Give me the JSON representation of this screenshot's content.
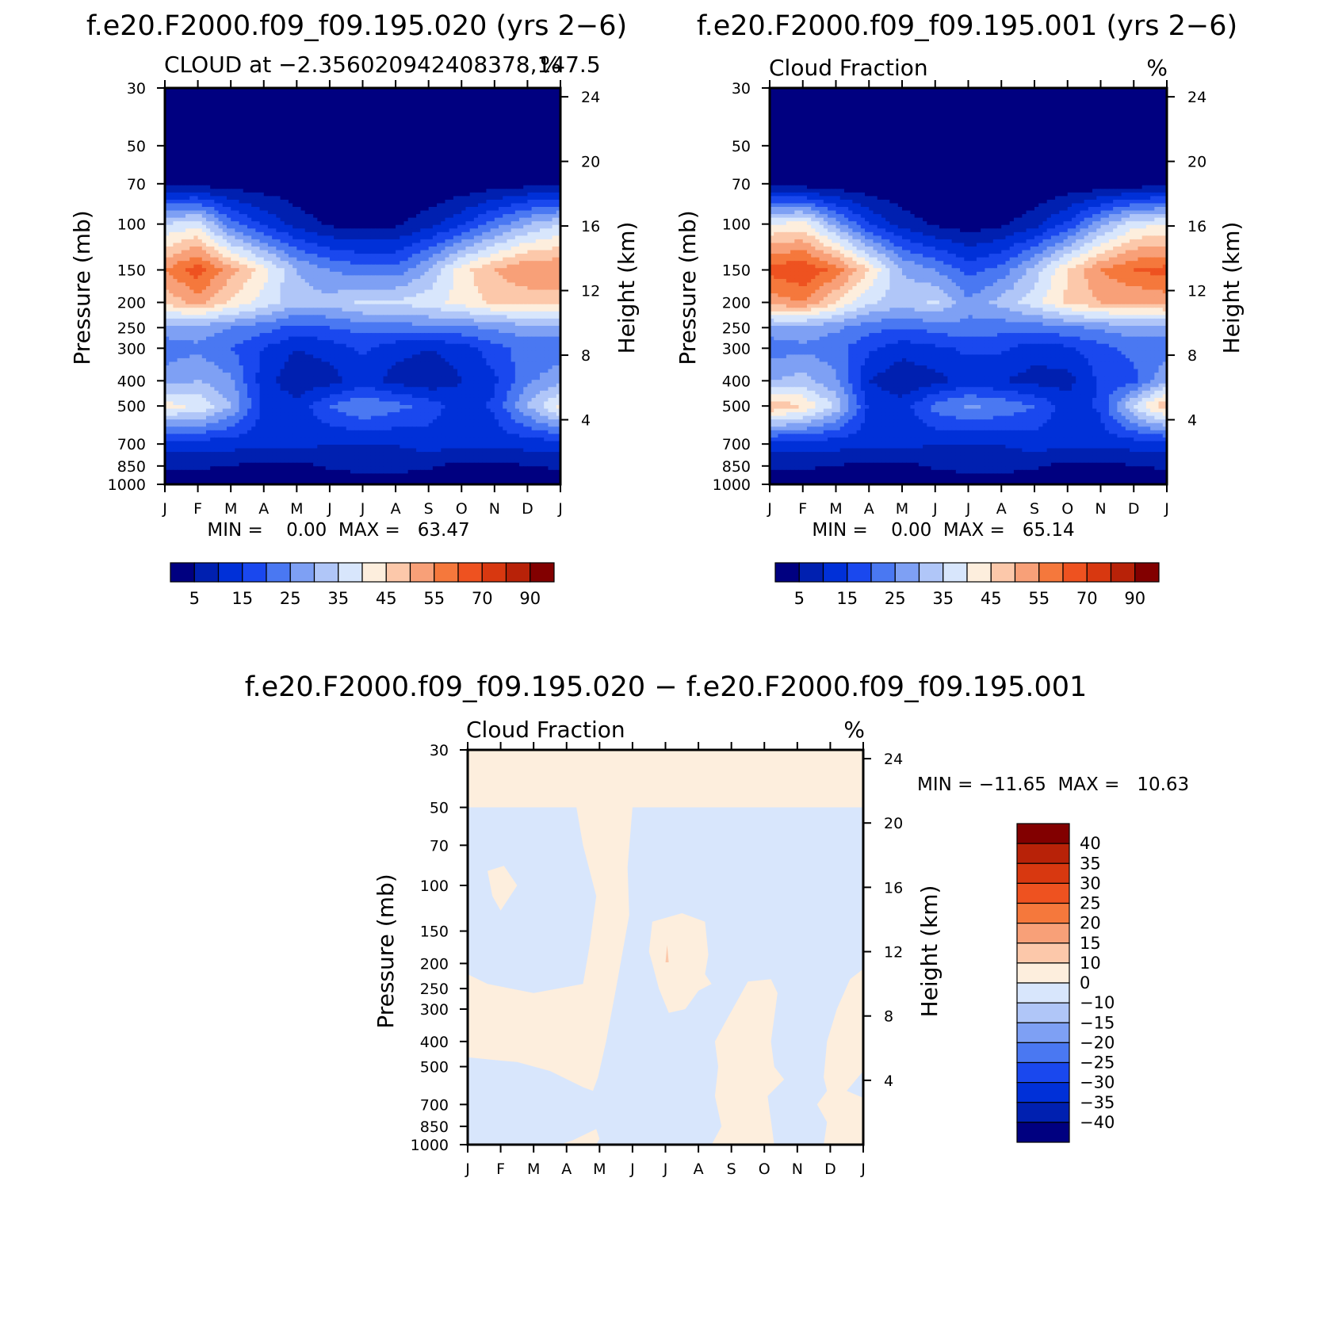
{
  "colors": {
    "palette": [
      "#000080",
      "#0020b0",
      "#0030d8",
      "#1a48ee",
      "#4a78f2",
      "#7ea0f4",
      "#b0c6f8",
      "#d8e6fc",
      "#fdeedd",
      "#fcc8aa",
      "#f8a078",
      "#f5783c",
      "#ee5220",
      "#d83810",
      "#b82208",
      "#820000"
    ],
    "diff_palette": [
      "#000080",
      "#0020b0",
      "#0030d8",
      "#1a48ee",
      "#4a78f2",
      "#7ea0f4",
      "#b0c6f8",
      "#d8e6fc",
      "#fdeedd",
      "#fcc8aa",
      "#f8a078",
      "#f5783c",
      "#ee5220",
      "#d83810",
      "#b82208",
      "#820000"
    ]
  },
  "chart_data": [
    {
      "type": "heatmap",
      "title": "f.e20.F2000.f09_f09.195.020 (yrs 2−6)",
      "subtitle_left": "CLOUD at −2.356020942408378,147.5",
      "subtitle_right": "%",
      "xlabel": "",
      "ylabel": "Pressure (mb)",
      "ylabel_right": "Height (km)",
      "x_ticks": [
        "J",
        "F",
        "M",
        "A",
        "M",
        "J",
        "J",
        "A",
        "S",
        "O",
        "N",
        "D",
        "J"
      ],
      "y_ticks": [
        "30",
        "50",
        "70",
        "100",
        "150",
        "200",
        "250",
        "300",
        "400",
        "500",
        "700",
        "850",
        "1000"
      ],
      "y_ticks_right": [
        "24",
        "20",
        "16",
        "12",
        "8",
        "4"
      ],
      "minmax": "MIN =    0.00  MAX =   63.47",
      "min": 0.0,
      "max": 63.47,
      "colorbar_labels": [
        "5",
        "15",
        "25",
        "35",
        "45",
        "55",
        "70",
        "90"
      ],
      "levels": [
        {
          "p": 30,
          "v": [
            0,
            0,
            0,
            0,
            0,
            0,
            0,
            0,
            0,
            0,
            0,
            0,
            0
          ]
        },
        {
          "p": 50,
          "v": [
            0,
            0,
            0,
            0,
            0,
            0,
            0,
            0,
            0,
            0,
            0,
            0,
            0
          ]
        },
        {
          "p": 70,
          "v": [
            3,
            3,
            2,
            2,
            1,
            0,
            0,
            0,
            0,
            1,
            2,
            3,
            3
          ]
        },
        {
          "p": 100,
          "v": [
            35,
            38,
            22,
            14,
            8,
            4,
            3,
            4,
            8,
            14,
            22,
            30,
            35
          ]
        },
        {
          "p": 150,
          "v": [
            55,
            63,
            52,
            42,
            30,
            25,
            22,
            22,
            30,
            43,
            50,
            55,
            55
          ]
        },
        {
          "p": 200,
          "v": [
            46,
            52,
            44,
            38,
            32,
            32,
            36,
            36,
            38,
            42,
            46,
            46,
            46
          ]
        },
        {
          "p": 250,
          "v": [
            28,
            28,
            25,
            22,
            18,
            20,
            22,
            22,
            24,
            24,
            26,
            28,
            28
          ]
        },
        {
          "p": 300,
          "v": [
            22,
            24,
            20,
            15,
            10,
            12,
            16,
            12,
            10,
            12,
            18,
            22,
            22
          ]
        },
        {
          "p": 400,
          "v": [
            28,
            30,
            26,
            12,
            6,
            8,
            12,
            8,
            6,
            10,
            14,
            24,
            28
          ]
        },
        {
          "p": 500,
          "v": [
            42,
            40,
            30,
            14,
            12,
            20,
            25,
            22,
            18,
            12,
            16,
            30,
            42
          ]
        },
        {
          "p": 700,
          "v": [
            12,
            12,
            12,
            12,
            12,
            10,
            10,
            10,
            12,
            12,
            12,
            12,
            12
          ]
        },
        {
          "p": 850,
          "v": [
            6,
            6,
            5,
            3,
            3,
            6,
            8,
            8,
            6,
            3,
            3,
            5,
            6
          ]
        },
        {
          "p": 1000,
          "v": [
            0,
            0,
            0,
            0,
            0,
            0,
            0,
            0,
            0,
            0,
            0,
            0,
            0
          ]
        }
      ]
    },
    {
      "type": "heatmap",
      "title": "f.e20.F2000.f09_f09.195.001 (yrs 2−6)",
      "subtitle_left": "Cloud Fraction",
      "subtitle_right": "%",
      "xlabel": "",
      "ylabel": "Pressure (mb)",
      "ylabel_right": "Height (km)",
      "x_ticks": [
        "J",
        "F",
        "M",
        "A",
        "M",
        "J",
        "J",
        "A",
        "S",
        "O",
        "N",
        "D",
        "J"
      ],
      "y_ticks": [
        "30",
        "50",
        "70",
        "100",
        "150",
        "200",
        "250",
        "300",
        "400",
        "500",
        "700",
        "850",
        "1000"
      ],
      "y_ticks_right": [
        "24",
        "20",
        "16",
        "12",
        "8",
        "4"
      ],
      "minmax": "MIN =    0.00  MAX =   65.14",
      "min": 0.0,
      "max": 65.14,
      "colorbar_labels": [
        "5",
        "15",
        "25",
        "35",
        "45",
        "55",
        "70",
        "90"
      ],
      "levels": [
        {
          "p": 30,
          "v": [
            0,
            0,
            0,
            0,
            0,
            0,
            0,
            0,
            0,
            0,
            0,
            0,
            0
          ]
        },
        {
          "p": 50,
          "v": [
            0,
            0,
            0,
            0,
            0,
            0,
            0,
            0,
            0,
            0,
            0,
            0,
            0
          ]
        },
        {
          "p": 70,
          "v": [
            2,
            2,
            1,
            1,
            0,
            0,
            0,
            0,
            0,
            1,
            1,
            2,
            2
          ]
        },
        {
          "p": 100,
          "v": [
            40,
            42,
            28,
            15,
            8,
            4,
            2,
            4,
            8,
            16,
            28,
            38,
            40
          ]
        },
        {
          "p": 150,
          "v": [
            62,
            65,
            58,
            45,
            30,
            25,
            18,
            22,
            32,
            45,
            55,
            60,
            62
          ]
        },
        {
          "p": 200,
          "v": [
            52,
            55,
            45,
            36,
            32,
            36,
            26,
            32,
            38,
            46,
            50,
            50,
            52
          ]
        },
        {
          "p": 250,
          "v": [
            28,
            28,
            26,
            22,
            20,
            22,
            24,
            22,
            22,
            24,
            26,
            28,
            28
          ]
        },
        {
          "p": 300,
          "v": [
            22,
            24,
            22,
            16,
            12,
            14,
            16,
            16,
            12,
            14,
            18,
            22,
            22
          ]
        },
        {
          "p": 400,
          "v": [
            30,
            32,
            26,
            10,
            6,
            8,
            12,
            10,
            8,
            8,
            16,
            18,
            30
          ]
        },
        {
          "p": 500,
          "v": [
            50,
            45,
            34,
            14,
            12,
            22,
            26,
            24,
            20,
            12,
            16,
            36,
            50
          ]
        },
        {
          "p": 700,
          "v": [
            12,
            12,
            12,
            12,
            12,
            10,
            10,
            10,
            12,
            12,
            12,
            12,
            12
          ]
        },
        {
          "p": 850,
          "v": [
            6,
            6,
            5,
            3,
            3,
            6,
            8,
            8,
            6,
            3,
            3,
            5,
            6
          ]
        },
        {
          "p": 1000,
          "v": [
            0,
            0,
            0,
            0,
            0,
            0,
            0,
            0,
            0,
            0,
            0,
            0,
            0
          ]
        }
      ]
    },
    {
      "type": "heatmap",
      "title": "f.e20.F2000.f09_f09.195.020 − f.e20.F2000.f09_f09.195.001",
      "subtitle_left": "Cloud Fraction",
      "subtitle_right": "%",
      "xlabel": "",
      "ylabel": "Pressure (mb)",
      "ylabel_right": "Height (km)",
      "x_ticks": [
        "J",
        "F",
        "M",
        "A",
        "M",
        "J",
        "J",
        "A",
        "S",
        "O",
        "N",
        "D",
        "J"
      ],
      "y_ticks": [
        "30",
        "50",
        "70",
        "100",
        "150",
        "200",
        "250",
        "300",
        "400",
        "500",
        "700",
        "850",
        "1000"
      ],
      "y_ticks_right": [
        "24",
        "20",
        "16",
        "12",
        "8",
        "4"
      ],
      "minmax": "MIN = −11.65  MAX =   10.63",
      "min": -11.65,
      "max": 10.63,
      "colorbar_labels": [
        "40",
        "35",
        "30",
        "25",
        "20",
        "15",
        "10",
        "0",
        "−10",
        "−15",
        "−20",
        "−25",
        "−30",
        "−35",
        "−40"
      ],
      "regions_positive": [
        {
          "points": [
            [
              0.0,
              30
            ],
            [
              12.0,
              30
            ],
            [
              12.0,
              50
            ],
            [
              0.0,
              50
            ]
          ]
        },
        {
          "points": [
            [
              3.3,
              50
            ],
            [
              5.0,
              50
            ],
            [
              4.85,
              85
            ],
            [
              4.9,
              130
            ],
            [
              4.5,
              250
            ],
            [
              4.2,
              400
            ],
            [
              3.95,
              550
            ],
            [
              3.8,
              620
            ],
            [
              3.5,
              600
            ],
            [
              2.5,
              520
            ],
            [
              1.5,
              480
            ],
            [
              0.7,
              470
            ],
            [
              0.0,
              460
            ],
            [
              0.0,
              220
            ],
            [
              0.6,
              240
            ],
            [
              2.0,
              260
            ],
            [
              3.5,
              240
            ],
            [
              3.7,
              170
            ],
            [
              3.9,
              110
            ],
            [
              3.5,
              70
            ]
          ]
        },
        {
          "points": [
            [
              0.6,
              88
            ],
            [
              1.1,
              84
            ],
            [
              1.5,
              100
            ],
            [
              1.0,
              125
            ],
            [
              0.75,
              110
            ]
          ]
        },
        {
          "points": [
            [
              5.6,
              138
            ],
            [
              6.5,
              128
            ],
            [
              7.2,
              138
            ],
            [
              7.3,
              185
            ],
            [
              7.2,
              220
            ],
            [
              7.4,
              240
            ],
            [
              7.0,
              255
            ],
            [
              6.6,
              300
            ],
            [
              6.1,
              310
            ],
            [
              5.8,
              250
            ],
            [
              5.6,
              200
            ],
            [
              5.5,
              180
            ]
          ]
        },
        {
          "points": [
            [
              7.8,
              340
            ],
            [
              8.5,
              235
            ],
            [
              9.2,
              230
            ],
            [
              9.4,
              260
            ],
            [
              9.2,
              400
            ],
            [
              9.3,
              500
            ],
            [
              9.6,
              560
            ],
            [
              9.1,
              650
            ],
            [
              9.3,
              1000
            ],
            [
              7.4,
              1000
            ],
            [
              7.7,
              850
            ],
            [
              7.5,
              650
            ],
            [
              7.6,
              500
            ],
            [
              7.5,
              400
            ]
          ]
        },
        {
          "points": [
            [
              10.8,
              550
            ],
            [
              10.9,
              400
            ],
            [
              11.2,
              300
            ],
            [
              11.6,
              230
            ],
            [
              12.0,
              210
            ],
            [
              12.0,
              520
            ],
            [
              11.5,
              620
            ],
            [
              12.0,
              660
            ],
            [
              12.0,
              1000
            ],
            [
              10.8,
              1000
            ],
            [
              10.9,
              820
            ],
            [
              10.6,
              700
            ],
            [
              10.9,
              620
            ]
          ]
        },
        {
          "points": [
            [
              3.5,
              920
            ],
            [
              3.9,
              870
            ],
            [
              4.0,
              950
            ],
            [
              3.9,
              1000
            ],
            [
              2.8,
              1000
            ],
            [
              3.2,
              960
            ]
          ]
        }
      ],
      "spot_strong": {
        "x": 6.05,
        "p": 182
      }
    }
  ]
}
